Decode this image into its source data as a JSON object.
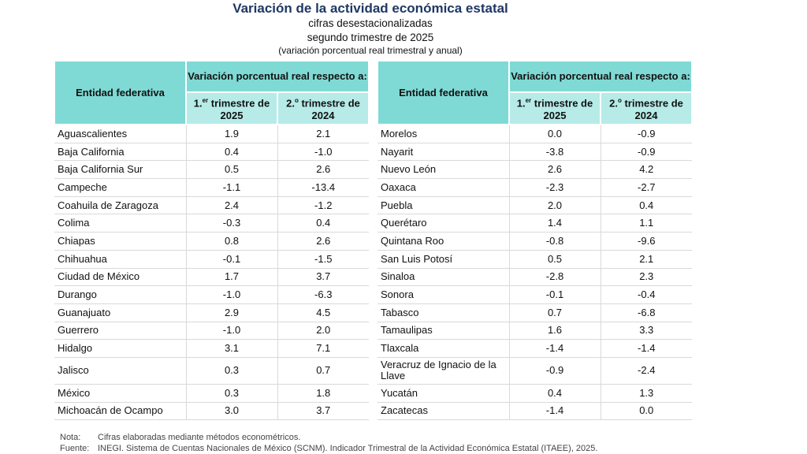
{
  "title": "Variación de la actividad económica estatal",
  "subtitle1": "cifras desestacionalizadas",
  "subtitle2": "segundo trimestre de 2025",
  "subtitle3": "(variación porcentual real trimestral y anual)",
  "headers": {
    "entity": "Entidad federativa",
    "variation": "Variación porcentual real respecto a:",
    "col1_a": "1.",
    "col1_sup": "er",
    "col1_b": " trimestre de 2025",
    "col2_a": "2.",
    "col2_sup": "o",
    "col2_b": " trimestre de 2024"
  },
  "left_rows": [
    {
      "name": "Aguascalientes",
      "q": "1.9",
      "a": "2.1"
    },
    {
      "name": "Baja California",
      "q": "0.4",
      "a": "-1.0"
    },
    {
      "name": "Baja California Sur",
      "q": "0.5",
      "a": "2.6"
    },
    {
      "name": "Campeche",
      "q": "-1.1",
      "a": "-13.4"
    },
    {
      "name": "Coahuila de Zaragoza",
      "q": "2.4",
      "a": "-1.2"
    },
    {
      "name": "Colima",
      "q": "-0.3",
      "a": "0.4"
    },
    {
      "name": "Chiapas",
      "q": "0.8",
      "a": "2.6"
    },
    {
      "name": "Chihuahua",
      "q": "-0.1",
      "a": "-1.5"
    },
    {
      "name": "Ciudad de México",
      "q": "1.7",
      "a": "3.7"
    },
    {
      "name": "Durango",
      "q": "-1.0",
      "a": "-6.3"
    },
    {
      "name": "Guanajuato",
      "q": "2.9",
      "a": "4.5"
    },
    {
      "name": "Guerrero",
      "q": "-1.0",
      "a": "2.0"
    },
    {
      "name": "Hidalgo",
      "q": "3.1",
      "a": "7.1"
    },
    {
      "name": "Jalisco",
      "q": "0.3",
      "a": "0.7"
    },
    {
      "name": "México",
      "q": "0.3",
      "a": "1.8"
    },
    {
      "name": "Michoacán de Ocampo",
      "q": "3.0",
      "a": "3.7"
    }
  ],
  "right_rows": [
    {
      "name": "Morelos",
      "q": "0.0",
      "a": "-0.9"
    },
    {
      "name": "Nayarit",
      "q": "-3.8",
      "a": "-0.9"
    },
    {
      "name": "Nuevo León",
      "q": "2.6",
      "a": "4.2"
    },
    {
      "name": "Oaxaca",
      "q": "-2.3",
      "a": "-2.7"
    },
    {
      "name": "Puebla",
      "q": "2.0",
      "a": "0.4"
    },
    {
      "name": "Querétaro",
      "q": "1.4",
      "a": "1.1"
    },
    {
      "name": "Quintana Roo",
      "q": "-0.8",
      "a": "-9.6"
    },
    {
      "name": "San Luis Potosí",
      "q": "0.5",
      "a": "2.1"
    },
    {
      "name": "Sinaloa",
      "q": "-2.8",
      "a": "2.3"
    },
    {
      "name": "Sonora",
      "q": "-0.1",
      "a": "-0.4"
    },
    {
      "name": "Tabasco",
      "q": "0.7",
      "a": "-6.8"
    },
    {
      "name": "Tamaulipas",
      "q": "1.6",
      "a": "3.3"
    },
    {
      "name": "Tlaxcala",
      "q": "-1.4",
      "a": "-1.4"
    },
    {
      "name": "Veracruz de Ignacio de la Llave",
      "q": "-0.9",
      "a": "-2.4"
    },
    {
      "name": "Yucatán",
      "q": "0.4",
      "a": "1.3"
    },
    {
      "name": "Zacatecas",
      "q": "-1.4",
      "a": "0.0"
    }
  ],
  "notes": {
    "nota_label": "Nota:",
    "nota_text": "Cifras elaboradas mediante métodos econométricos.",
    "fuente_label": "Fuente:",
    "fuente_text": "INEGI. Sistema de Cuentas Nacionales de México (SCNM). Indicador Trimestral de la Actividad Económica Estatal (ITAEE), 2025."
  }
}
